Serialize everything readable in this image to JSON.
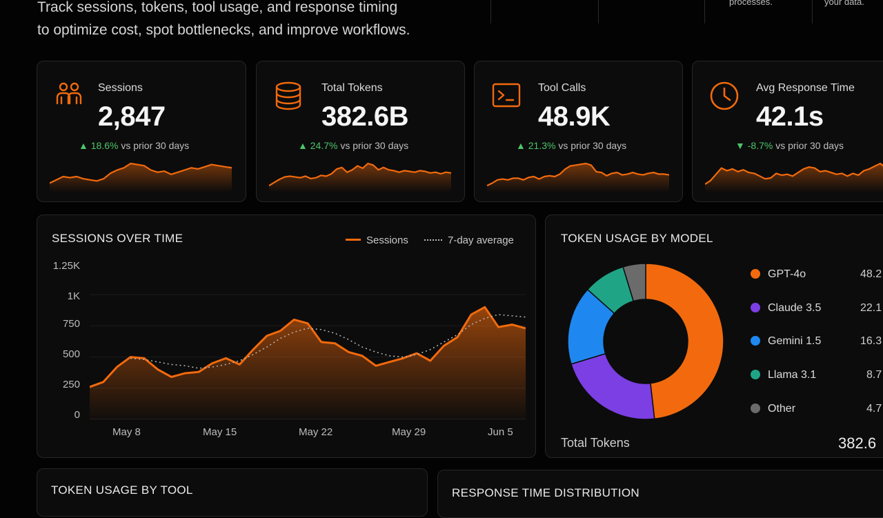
{
  "header": {
    "intro_line1": "Track sessions, tokens, tool usage, and response timing",
    "intro_line2": "to optimize cost, spot bottlenecks, and improve workflows.",
    "fragment_1": "processes.",
    "fragment_2": "your data."
  },
  "kpis": [
    {
      "label": "Sessions",
      "value": "2,847",
      "direction": "up",
      "pct": "▲ 18.6%",
      "suffix": "vs prior 30 days",
      "icon": "users-icon",
      "spark": [
        6,
        9,
        12,
        11,
        12,
        10,
        9,
        8,
        10,
        15,
        18,
        20,
        24,
        23,
        22,
        18,
        16,
        17,
        14,
        16,
        18,
        20,
        19,
        21,
        23,
        22,
        21,
        20
      ]
    },
    {
      "label": "Total Tokens",
      "value": "382.6B",
      "direction": "up",
      "pct": "▲ 24.7%",
      "suffix": "vs prior 30 days",
      "icon": "database-icon",
      "spark": [
        5,
        9,
        13,
        16,
        17,
        16,
        15,
        17,
        14,
        15,
        18,
        17,
        20,
        26,
        28,
        22,
        25,
        30,
        27,
        33,
        31,
        25,
        28,
        25,
        24,
        22,
        24,
        23,
        22,
        24,
        23,
        21,
        22,
        20,
        22,
        21
      ]
    },
    {
      "label": "Tool Calls",
      "value": "48.9K",
      "direction": "up",
      "pct": "▲ 21.3%",
      "suffix": "vs prior 30 days",
      "icon": "terminal-icon",
      "spark": [
        5,
        8,
        12,
        13,
        12,
        14,
        14,
        12,
        15,
        16,
        13,
        16,
        17,
        16,
        19,
        25,
        29,
        30,
        31,
        32,
        30,
        22,
        21,
        17,
        20,
        21,
        18,
        19,
        21,
        19,
        18,
        20,
        21,
        19,
        19,
        18
      ]
    },
    {
      "label": "Avg Response Time",
      "value": "42.1s",
      "direction": "down",
      "pct": "▼ -8.7%",
      "suffix": "vs prior 30 days",
      "icon": "clock-icon",
      "spark": [
        6,
        10,
        17,
        24,
        21,
        23,
        20,
        22,
        19,
        18,
        15,
        12,
        13,
        18,
        16,
        17,
        15,
        19,
        23,
        25,
        24,
        20,
        21,
        19,
        17,
        18,
        15,
        18,
        16,
        21,
        23,
        26,
        29,
        24
      ]
    }
  ],
  "sessions_chart": {
    "title": "SESSIONS OVER TIME",
    "legend_sessions": "Sessions",
    "legend_avg": "7-day average",
    "y_ticks": [
      "1.25K",
      "1K",
      "750",
      "500",
      "250",
      "0"
    ],
    "x_ticks": [
      "May 8",
      "May 15",
      "May 22",
      "May 29",
      "Jun 5"
    ]
  },
  "chart_data": {
    "type": "area",
    "x": [
      "May 5",
      "May 6",
      "May 7",
      "May 8",
      "May 9",
      "May 10",
      "May 11",
      "May 12",
      "May 13",
      "May 14",
      "May 15",
      "May 16",
      "May 17",
      "May 18",
      "May 19",
      "May 20",
      "May 21",
      "May 22",
      "May 23",
      "May 24",
      "May 25",
      "May 26",
      "May 27",
      "May 28",
      "May 29",
      "May 30",
      "May 31",
      "Jun 1",
      "Jun 2",
      "Jun 3",
      "Jun 4",
      "Jun 5",
      "Jun 6"
    ],
    "series": [
      {
        "name": "Sessions",
        "values": [
          260,
          300,
          420,
          500,
          490,
          400,
          340,
          370,
          380,
          450,
          490,
          440,
          560,
          670,
          710,
          800,
          770,
          620,
          610,
          540,
          510,
          430,
          460,
          490,
          530,
          470,
          590,
          660,
          840,
          900,
          740,
          760,
          730
        ]
      },
      {
        "name": "7-day average",
        "values": [
          null,
          null,
          null,
          490,
          480,
          460,
          440,
          430,
          410,
          420,
          440,
          470,
          520,
          580,
          650,
          700,
          730,
          720,
          690,
          640,
          580,
          540,
          510,
          500,
          520,
          560,
          620,
          680,
          760,
          810,
          840,
          830,
          820
        ]
      }
    ],
    "ylim": [
      0,
      1250
    ]
  },
  "token_usage": {
    "title": "TOKEN USAGE BY MODEL",
    "models": [
      {
        "name": "GPT-4o",
        "value": "48.2",
        "share": 48.2,
        "color": "#f26a0d"
      },
      {
        "name": "Claude 3.5",
        "value": "22.1",
        "share": 22.1,
        "color": "#7b3fe4"
      },
      {
        "name": "Gemini 1.5",
        "value": "16.3",
        "share": 16.3,
        "color": "#1e88f0"
      },
      {
        "name": "Llama 3.1",
        "value": "8.7",
        "share": 8.7,
        "color": "#1fa585"
      },
      {
        "name": "Other",
        "value": "4.7",
        "share": 4.7,
        "color": "#6b6b6b"
      }
    ],
    "total_label": "Total Tokens",
    "total_value": "382.6"
  },
  "bottom": {
    "tool_title": "TOKEN USAGE BY TOOL",
    "response_title": "RESPONSE TIME DISTRIBUTION"
  }
}
